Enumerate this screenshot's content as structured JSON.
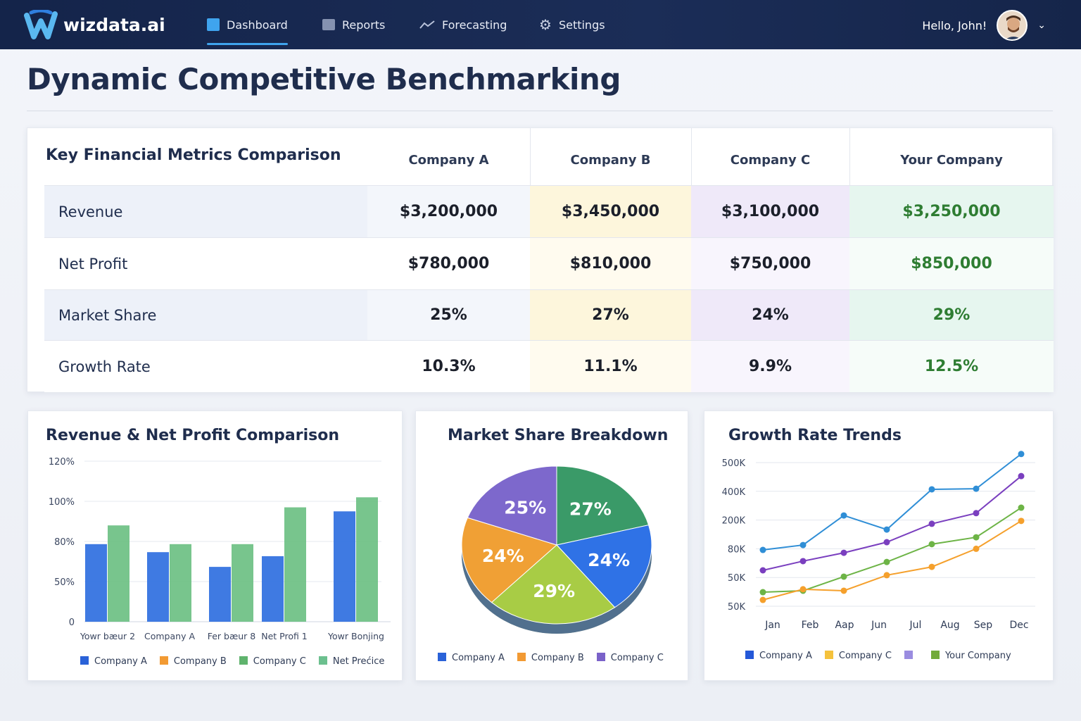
{
  "app": {
    "name": "wizdata.ai",
    "greeting": "Hello, John!"
  },
  "nav": [
    {
      "label": "Dashboard",
      "icon": "dashboard-icon",
      "active": true
    },
    {
      "label": "Reports",
      "icon": "reports-icon"
    },
    {
      "label": "Forecasting",
      "icon": "trend-icon"
    },
    {
      "label": "Settings",
      "icon": "gear-icon"
    }
  ],
  "page": {
    "title": "Dynamic Competitive Benchmarking"
  },
  "table": {
    "title": "Key Financial Metrics Comparison",
    "columns": [
      "Company A",
      "Company B",
      "Company C",
      "Your Company"
    ],
    "rows": [
      {
        "label": "Revenue",
        "values": [
          "$3,200,000",
          "$3,450,000",
          "$3,100,000",
          "$3,250,000"
        ]
      },
      {
        "label": "Net Profit",
        "values": [
          "$780,000",
          "$810,000",
          "$750,000",
          "$850,000"
        ]
      },
      {
        "label": "Market Share",
        "values": [
          "25%",
          "27%",
          "24%",
          "29%"
        ]
      },
      {
        "label": "Growth Rate",
        "values": [
          "10.3%",
          "11.1%",
          "9.9%",
          "12.5%"
        ]
      }
    ]
  },
  "colors": {
    "blue": "#2f6fe0",
    "green": "#6cc083",
    "orange": "#f2a33a",
    "purple": "#7a62c9",
    "your_company": "#2e7d32"
  },
  "chart_data": [
    {
      "type": "bar",
      "title": "Revenue & Net Profit Comparison",
      "categories": [
        "Yowr bæur 2",
        "Company A",
        "Fer bæur 8",
        "Net Profi 1",
        "Yowr Bonjing"
      ],
      "yticks": [
        "0",
        "50%",
        "80%",
        "100%",
        "120%"
      ],
      "ytick_values": [
        0,
        50,
        80,
        100,
        120
      ],
      "series": [
        {
          "color": "#2f6fe0",
          "values": [
            78,
            72,
            61,
            69,
            95
          ]
        },
        {
          "color": "#6cc083",
          "values": [
            88,
            78,
            78,
            97,
            102
          ]
        }
      ],
      "legend": [
        {
          "name": "Company A",
          "color": "#2a62d8"
        },
        {
          "name": "Company B",
          "color": "#f29a33"
        },
        {
          "name": "Company C",
          "color": "#5fb36d"
        },
        {
          "name": "Net Prećice",
          "color": "#6cc08f"
        }
      ],
      "grid": true,
      "legend_position": "bottom"
    },
    {
      "type": "pie",
      "title": "Market Share Breakdown",
      "slices": [
        {
          "label": "27%",
          "value": 27,
          "color": "#3a9a68"
        },
        {
          "label": "24%",
          "value": 24,
          "color": "#2f72e6"
        },
        {
          "label": "29%",
          "value": 29,
          "color": "#a8cc45"
        },
        {
          "label": "24%",
          "value": 24,
          "color": "#f0a035"
        },
        {
          "label": "25%",
          "value": 25,
          "color": "#7d68cc"
        }
      ],
      "legend": [
        {
          "name": "Company A",
          "color": "#2a62d8"
        },
        {
          "name": "Company B",
          "color": "#f29a33"
        },
        {
          "name": "Company C",
          "color": "#7a62c9"
        }
      ],
      "legend_position": "bottom"
    },
    {
      "type": "line",
      "title": "Growth Rate Trends",
      "xticks": [
        "Jan",
        "Feb",
        "Aap",
        "Jun",
        "Jul",
        "Aug",
        "Sep",
        "Dec"
      ],
      "yticks": [
        "50K",
        "50K",
        "80K",
        "200K",
        "400K",
        "500K"
      ],
      "y_scale": "values given as position on the printed tick sequence (0 = first tick)",
      "series": [
        {
          "color": "#2f8ed6",
          "values": [
            1.96,
            2.13,
            3.16,
            2.67,
            4.07,
            4.09,
            5.3
          ]
        },
        {
          "color": "#7a3fbf",
          "values": [
            1.25,
            1.57,
            1.86,
            2.23,
            2.87,
            3.24,
            4.53
          ]
        },
        {
          "color": "#6db446",
          "values": [
            0.49,
            0.54,
            1.03,
            1.54,
            2.16,
            2.4,
            3.43
          ]
        },
        {
          "color": "#f5a02c",
          "values": [
            0.22,
            0.59,
            0.54,
            1.08,
            1.37,
            2.0,
            2.97
          ]
        }
      ],
      "legend": [
        {
          "name": "Company A",
          "color": "#2458d8"
        },
        {
          "name": "Company C",
          "color": "#f5c23c"
        },
        {
          "name": "",
          "color": "#9a8ce0"
        },
        {
          "name": "Your Company",
          "color": "#72aa3a"
        }
      ],
      "grid": true,
      "legend_position": "bottom"
    }
  ]
}
